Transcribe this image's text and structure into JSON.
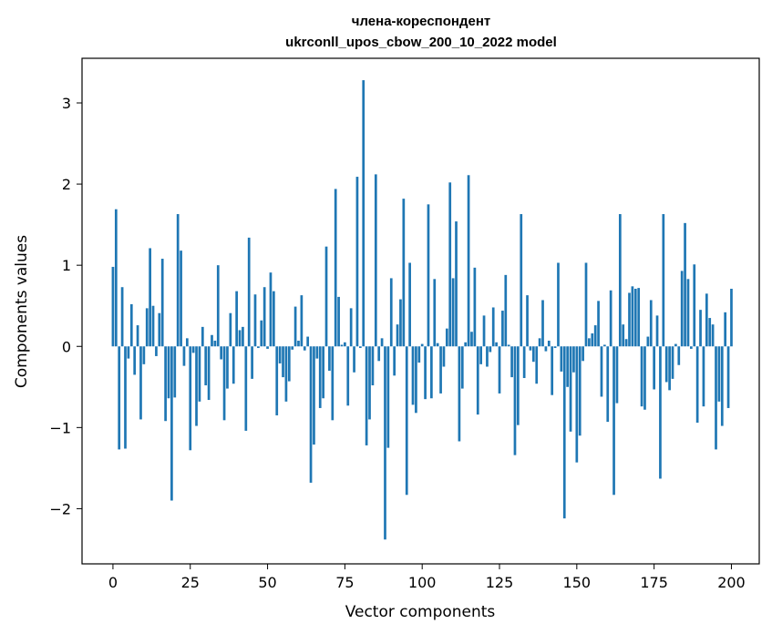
{
  "chart_data": {
    "type": "bar",
    "title_line1": "члена-кореспондент",
    "title_line2": "ukrconll_upos_cbow_200_10_2022 model",
    "xlabel": "Vector components",
    "ylabel": "Components values",
    "xlim": [
      -10,
      209
    ],
    "ylim": [
      -2.68,
      3.55
    ],
    "xticks": [
      0,
      25,
      50,
      75,
      100,
      125,
      150,
      175,
      200
    ],
    "yticks": [
      -2,
      -1,
      0,
      1,
      2,
      3
    ],
    "ytick_labels": [
      "−2",
      "−1",
      "0",
      "1",
      "2",
      "3"
    ],
    "bar_color": "#1f77b4",
    "grid": false,
    "values": [
      0.98,
      1.69,
      -1.27,
      0.73,
      -1.26,
      -0.15,
      0.52,
      -0.35,
      0.26,
      -0.9,
      -0.22,
      0.47,
      1.21,
      0.5,
      -0.12,
      0.41,
      1.08,
      -0.92,
      -0.64,
      -1.9,
      -0.63,
      1.63,
      1.18,
      -0.24,
      0.1,
      -1.28,
      -0.08,
      -0.98,
      -0.68,
      0.24,
      -0.48,
      -0.66,
      0.14,
      0.07,
      1.0,
      -0.16,
      -0.91,
      -0.52,
      0.41,
      -0.46,
      0.68,
      0.2,
      0.24,
      -1.04,
      1.34,
      -0.4,
      0.64,
      -0.02,
      0.32,
      0.73,
      -0.03,
      0.91,
      0.68,
      -0.85,
      -0.21,
      -0.38,
      -0.68,
      -0.43,
      -0.04,
      0.49,
      0.07,
      0.63,
      -0.05,
      0.12,
      -1.68,
      -1.21,
      -0.15,
      -0.76,
      -0.64,
      1.23,
      -0.3,
      -0.91,
      1.94,
      0.61,
      0.02,
      0.05,
      -0.73,
      0.47,
      -0.32,
      2.09,
      -0.02,
      3.28,
      -1.22,
      -0.9,
      -0.48,
      2.12,
      -0.18,
      0.1,
      -2.38,
      -1.25,
      0.84,
      -0.36,
      0.27,
      0.58,
      1.82,
      -1.83,
      1.03,
      -0.72,
      -0.82,
      -0.2,
      0.03,
      -0.65,
      1.75,
      -0.64,
      0.83,
      0.04,
      -0.58,
      -0.25,
      0.22,
      2.02,
      0.84,
      1.54,
      -1.17,
      -0.52,
      0.05,
      2.11,
      0.18,
      0.97,
      -0.84,
      -0.22,
      0.38,
      -0.25,
      -0.07,
      0.48,
      0.05,
      -0.58,
      0.44,
      0.88,
      0.02,
      -0.38,
      -1.34,
      -0.97,
      1.63,
      -0.39,
      0.63,
      -0.05,
      -0.19,
      -0.46,
      0.1,
      0.57,
      -0.06,
      0.07,
      -0.6,
      -0.02,
      1.03,
      -0.31,
      -2.12,
      -0.5,
      -1.05,
      -0.32,
      -1.43,
      -1.1,
      -0.18,
      1.03,
      0.1,
      0.16,
      0.26,
      0.56,
      -0.62,
      0.02,
      -0.93,
      0.69,
      -1.83,
      -0.7,
      1.63,
      0.27,
      0.09,
      0.66,
      0.74,
      0.71,
      0.72,
      -0.74,
      -0.78,
      0.12,
      0.57,
      -0.53,
      0.38,
      -1.63,
      1.63,
      -0.44,
      -0.54,
      -0.4,
      0.03,
      -0.23,
      0.93,
      1.52,
      0.83,
      -0.03,
      1.01,
      -0.94,
      0.45,
      -0.74,
      0.65,
      0.35,
      0.27,
      -1.27,
      -0.68,
      -0.98,
      0.42,
      -0.76,
      0.71
    ]
  }
}
